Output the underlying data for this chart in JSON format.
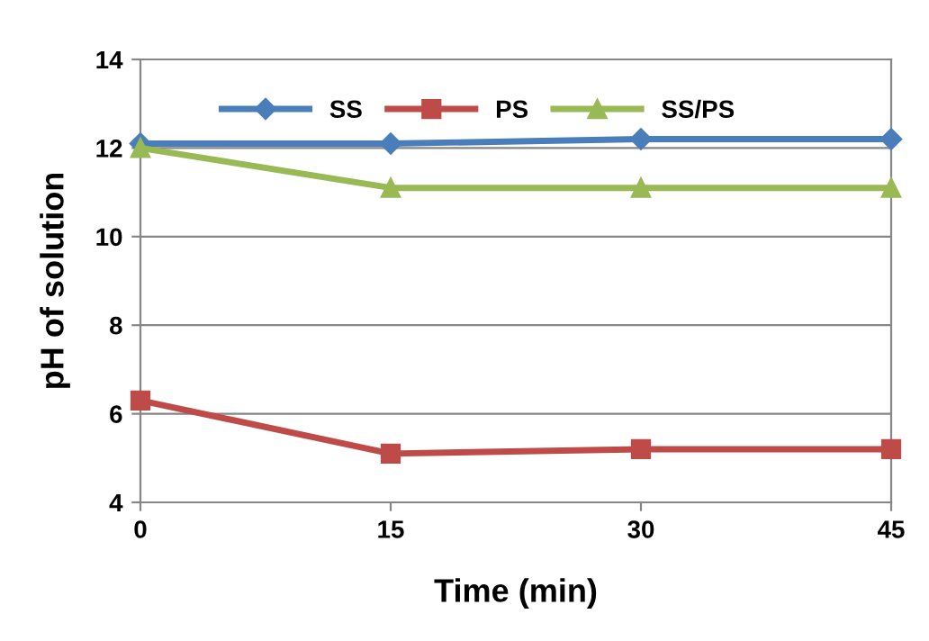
{
  "chart_data": {
    "type": "line",
    "xlabel": "Time (min)",
    "ylabel": "pH of solution",
    "x": [
      0,
      15,
      30,
      45
    ],
    "series": [
      {
        "name": "SS",
        "color": "#4a7ebb",
        "values": [
          12.1,
          12.1,
          12.2,
          12.2
        ],
        "marker": "diamond"
      },
      {
        "name": "PS",
        "color": "#be4b48",
        "values": [
          6.3,
          5.1,
          5.2,
          5.2
        ],
        "marker": "square"
      },
      {
        "name": "SS/PS",
        "color": "#98b954",
        "values": [
          12.0,
          11.1,
          11.1,
          11.1
        ],
        "marker": "triangle"
      }
    ],
    "xlim": [
      0,
      45
    ],
    "xticks": [
      0,
      15,
      30,
      45
    ],
    "ylim": [
      4,
      14
    ],
    "yticks": [
      4,
      6,
      8,
      10,
      12,
      14
    ],
    "grid": "y",
    "legend": "top",
    "line_style": "solid"
  }
}
